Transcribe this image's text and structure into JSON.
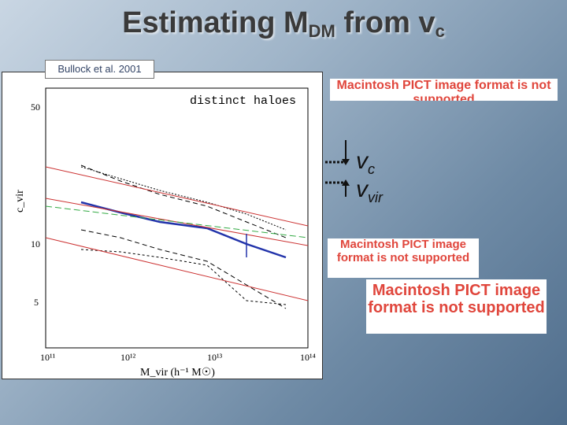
{
  "slide": {
    "title_main": "Estimating M",
    "title_sub": "DM",
    "title_rest": " from v",
    "title_sub2": "c"
  },
  "citation": "Bullock et al. 2001",
  "plot": {
    "label_distinct": "distinct haloes",
    "y_axis_label": "c_vir",
    "x_axis_label": "M_vir (h⁻¹ M☉)",
    "y_ticks": [
      "50",
      "10",
      "5"
    ],
    "x_ticks": [
      "10¹¹",
      "10¹²",
      "10¹³",
      "10¹⁴"
    ]
  },
  "annotations": {
    "vc_main": "v",
    "vc_sub": "c",
    "vvir_main": "v",
    "vvir_sub": "vir"
  },
  "picts": {
    "pict1": "Macintosh PICT image format is not supported",
    "pict2": "Macintosh PICT image format is not supported",
    "pict3": "Macintosh PICT image format is not supported"
  },
  "chart_data": {
    "type": "line",
    "xlabel": "M_vir (h⁻¹ M☉)",
    "ylabel": "c_vir",
    "x_scale": "log",
    "y_scale": "log",
    "xlim": [
      100000000000.0,
      100000000000000.0
    ],
    "ylim": [
      3.5,
      60
    ],
    "series": [
      {
        "x": [
          100000000000.0,
          300000000000.0,
          1000000000000.0,
          3000000000000.0,
          10000000000000.0,
          30000000000000.0,
          100000000000000.0
        ],
        "values": [
          17,
          15.5,
          14,
          13,
          11.5,
          10.5,
          9
        ]
      },
      {
        "x": [
          100000000000.0,
          300000000000.0,
          1000000000000.0,
          3000000000000.0,
          10000000000000.0,
          30000000000000.0,
          100000000000000.0
        ],
        "values": [
          15,
          14.3,
          13.5,
          12.8,
          12,
          11.3,
          10.5
        ]
      },
      {
        "x": [
          100000000000.0,
          300000000000.0,
          1000000000000.0,
          3000000000000.0,
          10000000000000.0,
          30000000000000.0,
          100000000000000.0
        ],
        "values": [
          22,
          20,
          17,
          16,
          14,
          12,
          11
        ]
      },
      {
        "x": [
          100000000000.0,
          300000000000.0,
          1000000000000.0,
          3000000000000.0,
          10000000000000.0,
          30000000000000.0
        ],
        "values": [
          10,
          9.5,
          8.5,
          7.5,
          5,
          5.2
        ]
      },
      {
        "x": [
          100000000000.0,
          100000000000000.0
        ],
        "values": [
          24,
          12
        ]
      },
      {
        "x": [
          100000000000.0,
          100000000000000.0
        ],
        "values": [
          10,
          5
        ]
      }
    ]
  }
}
